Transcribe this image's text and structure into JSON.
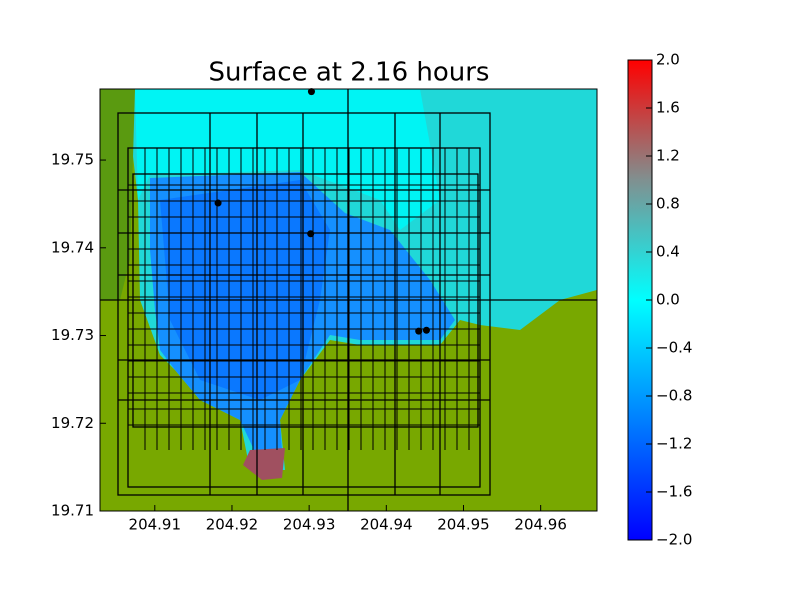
{
  "chart_data": {
    "type": "scatter",
    "title": "Surface at 2.16 hours",
    "xlim": [
      204.9029,
      204.9673
    ],
    "ylim": [
      19.71,
      19.7581
    ],
    "xticks": [
      204.91,
      204.92,
      204.93,
      204.94,
      204.95,
      204.96
    ],
    "yticks": [
      19.71,
      19.72,
      19.73,
      19.74,
      19.75
    ],
    "series": [
      {
        "color": "#000000",
        "x": [
          204.9303,
          204.9182,
          204.9302,
          204.9442,
          204.9452
        ],
        "values": [
          19.7578,
          19.7451,
          19.7416,
          19.7305,
          19.7306
        ]
      }
    ],
    "colorbar": {
      "lim": [
        -2.0,
        2.0
      ],
      "ticks": [
        {
          "value": -2.0,
          "label": "−2.0"
        },
        {
          "value": -1.6,
          "label": "−1.6"
        },
        {
          "value": -1.2,
          "label": "−1.2"
        },
        {
          "value": -0.8,
          "label": "−0.8"
        },
        {
          "value": -0.4,
          "label": "−0.4"
        },
        {
          "value": 0.0,
          "label": "0.0"
        },
        {
          "value": 0.4,
          "label": "0.4"
        },
        {
          "value": 0.8,
          "label": "0.8"
        },
        {
          "value": 1.2,
          "label": "1.2"
        },
        {
          "value": 1.6,
          "label": "1.6"
        },
        {
          "value": 2.0,
          "label": "2.0"
        }
      ]
    }
  }
}
